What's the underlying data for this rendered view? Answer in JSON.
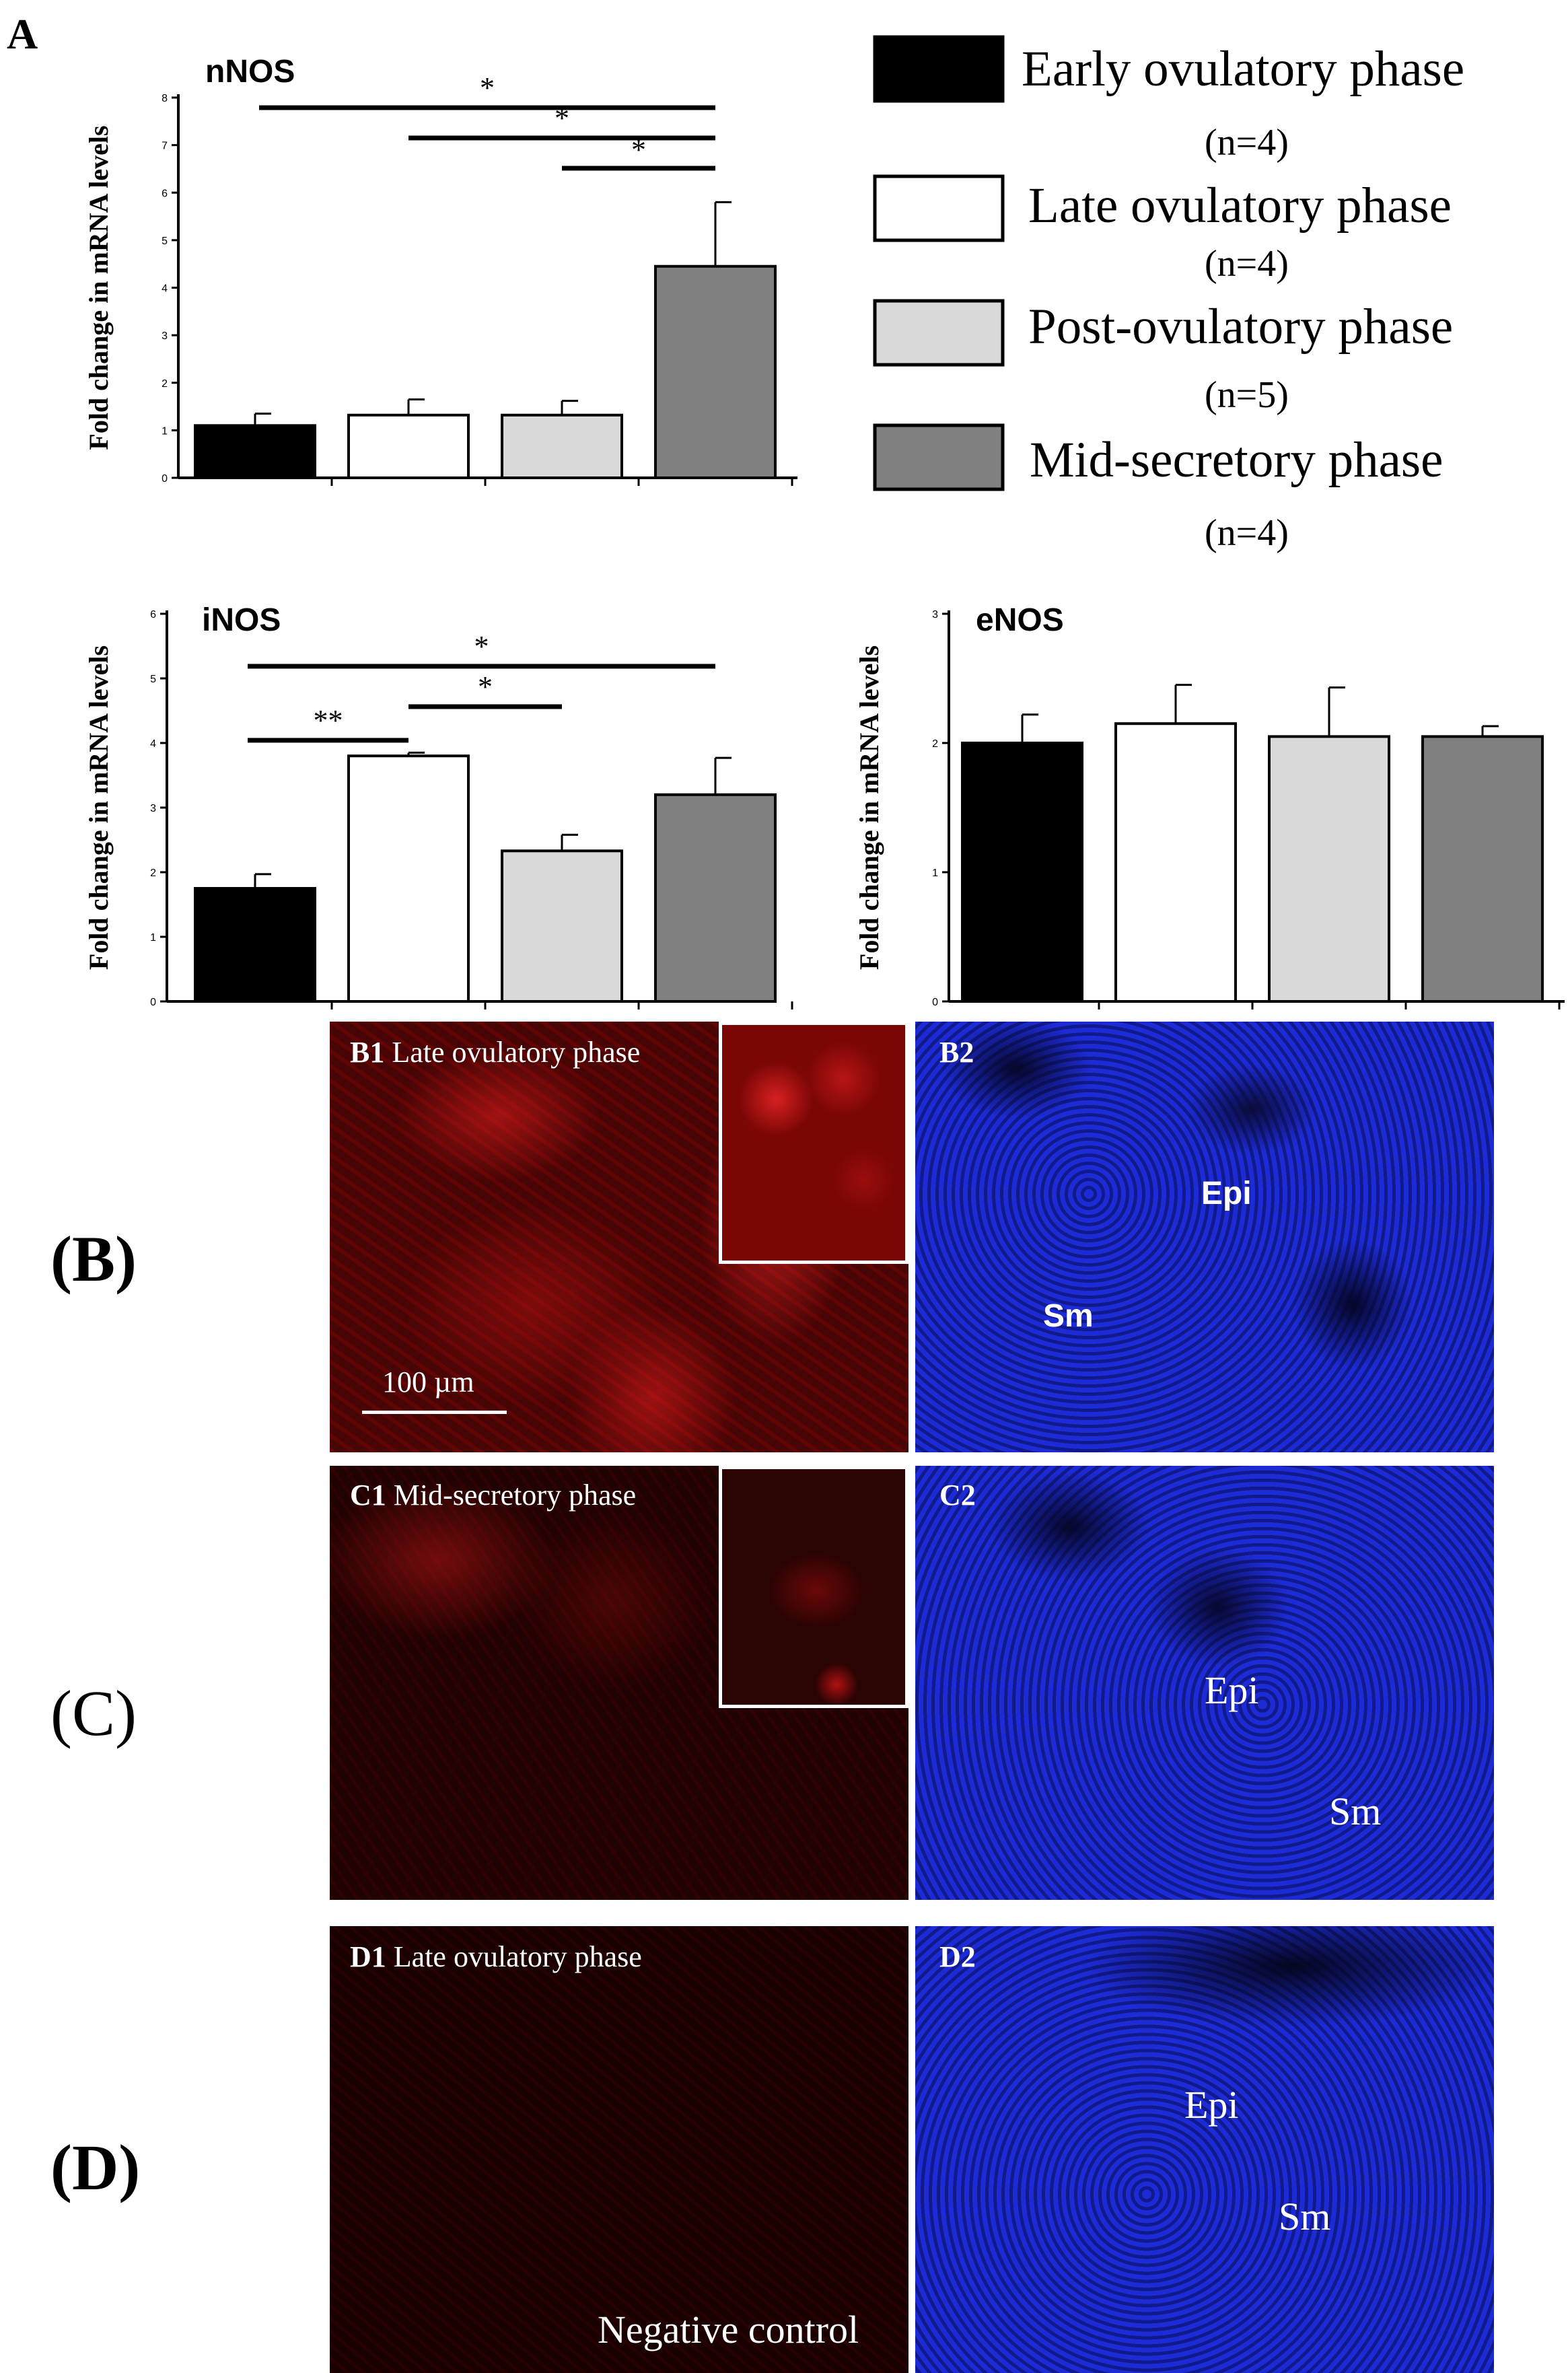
{
  "figure": {
    "panel_A_label": "A",
    "panel_B_label": "(B)",
    "panel_C_label": "(C)",
    "panel_D_label": "(D)"
  },
  "legend": [
    {
      "name": "Early ovulatory phase",
      "n": "(n=4)",
      "color": "#000000"
    },
    {
      "name": "Late ovulatory phase",
      "n": "(n=4)",
      "color": "#ffffff"
    },
    {
      "name": "Post-ovulatory phase",
      "n": "(n=5)",
      "color": "#d9d9d9"
    },
    {
      "name": "Mid-secretory phase",
      "n": "(n=4)",
      "color": "#808080"
    }
  ],
  "chart_data": [
    {
      "type": "bar",
      "title": "nNOS",
      "ylabel": "Fold change in mRNA levels",
      "ylim": [
        0,
        8
      ],
      "yticks": [
        "0",
        "1",
        "2",
        "3",
        "4",
        "5",
        "6",
        "7",
        "8"
      ],
      "categories": [
        "Early ovulatory phase",
        "Late ovulatory phase",
        "Post-ovulatory phase",
        "Mid-secretory phase"
      ],
      "values": [
        1.1,
        1.32,
        1.32,
        4.45
      ],
      "errors": [
        0.25,
        0.33,
        0.3,
        1.35
      ],
      "significance": [
        {
          "from": 0,
          "to": 3,
          "label": "*"
        },
        {
          "from": 1,
          "to": 3,
          "label": "*"
        },
        {
          "from": 2,
          "to": 3,
          "label": "*"
        }
      ]
    },
    {
      "type": "bar",
      "title": "iNOS",
      "ylabel": "Fold change in mRNA levels",
      "ylim": [
        0,
        6
      ],
      "yticks": [
        "0",
        "1",
        "2",
        "3",
        "4",
        "5",
        "6"
      ],
      "categories": [
        "Early ovulatory phase",
        "Late ovulatory phase",
        "Post-ovulatory phase",
        "Mid-secretory phase"
      ],
      "values": [
        1.75,
        3.8,
        2.33,
        3.2
      ],
      "errors": [
        0.22,
        0.05,
        0.25,
        0.57
      ],
      "significance": [
        {
          "from": 0,
          "to": 3,
          "label": "*"
        },
        {
          "from": 1,
          "to": 2,
          "label": "*"
        },
        {
          "from": 0,
          "to": 1,
          "label": "**"
        }
      ]
    },
    {
      "type": "bar",
      "title": "eNOS",
      "ylabel": "Fold change in mRNA levels",
      "ylim": [
        0,
        3
      ],
      "yticks": [
        "0",
        "1",
        "2",
        "3"
      ],
      "categories": [
        "Early ovulatory phase",
        "Late ovulatory phase",
        "Post-ovulatory phase",
        "Mid-secretory phase"
      ],
      "values": [
        2.0,
        2.15,
        2.05,
        2.05
      ],
      "errors": [
        0.22,
        0.3,
        0.38,
        0.08
      ],
      "significance": []
    }
  ],
  "micrographs": {
    "B1": {
      "id": "B1",
      "text": "Late ovulatory phase",
      "scale": "100 µm"
    },
    "B2": {
      "id": "B2",
      "epi": "Epi",
      "sm": "Sm"
    },
    "C1": {
      "id": "C1",
      "text": "Mid-secretory phase"
    },
    "C2": {
      "id": "C2",
      "epi": "Epi",
      "sm": "Sm"
    },
    "D1": {
      "id": "D1",
      "text": "Late ovulatory phase",
      "note": "Negative control"
    },
    "D2": {
      "id": "D2",
      "epi": "Epi",
      "sm": "Sm"
    }
  }
}
